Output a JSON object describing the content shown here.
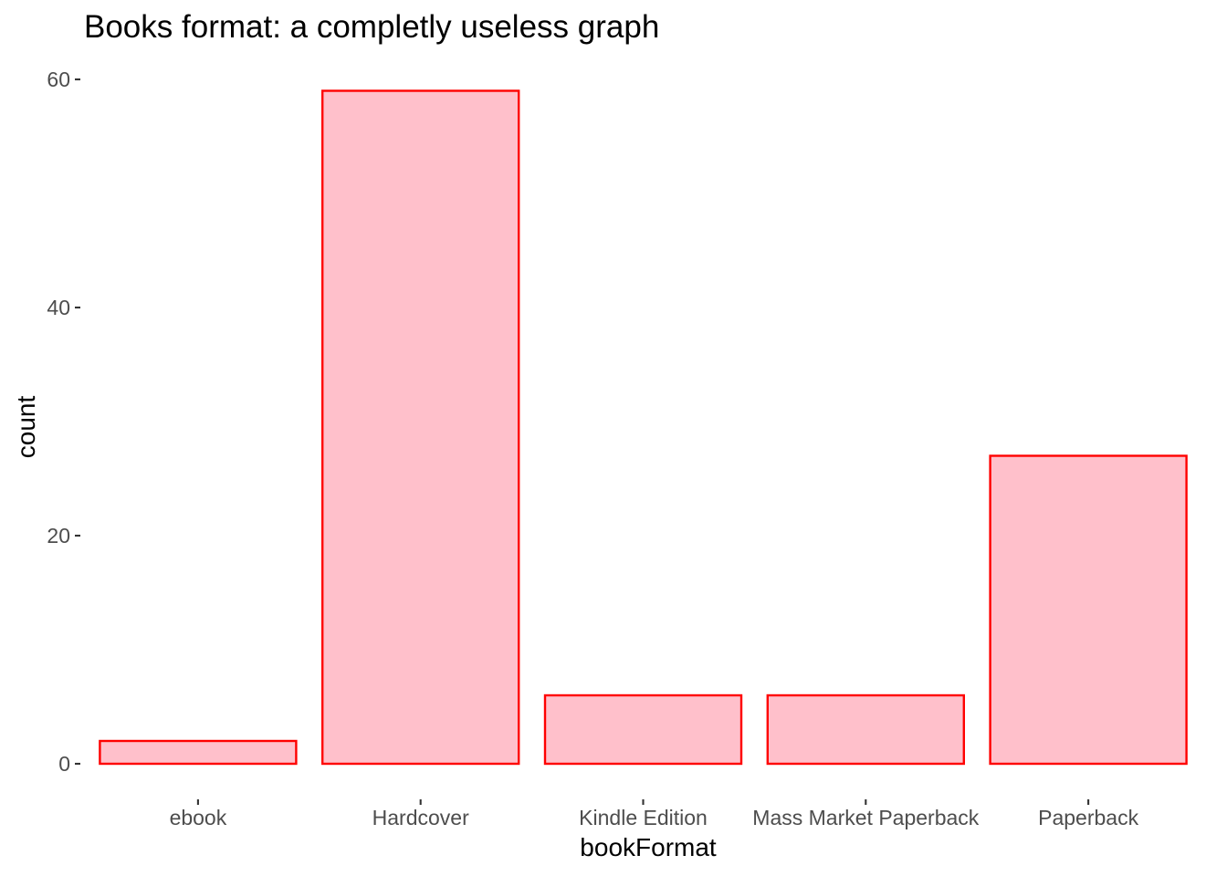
{
  "chart_data": {
    "type": "bar",
    "title": "Books format: a completly useless graph",
    "xlabel": "bookFormat",
    "ylabel": "count",
    "categories": [
      "ebook",
      "Hardcover",
      "Kindle Edition",
      "Mass Market Paperback",
      "Paperback"
    ],
    "values": [
      2,
      59,
      6,
      6,
      27
    ],
    "ylim": [
      0,
      62
    ],
    "yticks": [
      "0",
      "20",
      "40",
      "60"
    ],
    "grid": false,
    "legend": "none",
    "colors": {
      "bar_fill": "#FFC0CB",
      "bar_stroke": "#FF0000",
      "tick_label": "#4D4D4D",
      "tick_mark": "#333333"
    }
  }
}
